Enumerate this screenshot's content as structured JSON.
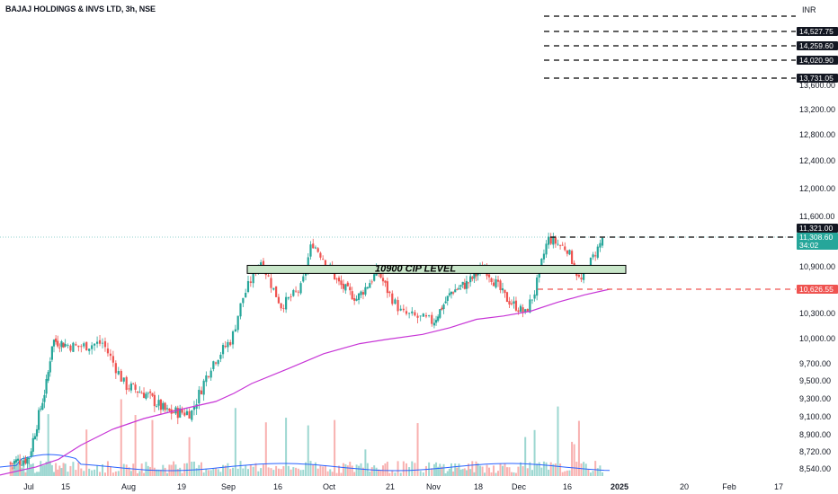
{
  "header": {
    "title": "BAJAJ HOLDINGS & INVS LTD, 3h, NSE"
  },
  "colors": {
    "up": "#26a69a",
    "down": "#ef5350",
    "ma": "#c735d6",
    "volume_ma": "#2962ff",
    "zone_fill": "#c8e6c9",
    "stop": "#ef5350",
    "tag_bg": "#131722"
  },
  "chart_data": {
    "type": "candlestick",
    "currency": "INR",
    "y_ticks": [
      13600,
      13200,
      12800,
      12400,
      12000,
      11600,
      10900,
      10300,
      10000,
      9700,
      9500,
      9300,
      9100,
      8900,
      8720,
      8540
    ],
    "y_tick_labels": [
      "13,600.00",
      "13,200.00",
      "12,800.00",
      "12,400.00",
      "12,000.00",
      "11,600.00",
      "10,900.00",
      "10,300.00",
      "10,000.00",
      "9,700.00",
      "9,500.00",
      "9,300.00",
      "9,100.00",
      "8,900.00",
      "8,720.00",
      "8,540.00"
    ],
    "x_labels": [
      "Jul",
      "15",
      "Aug",
      "19",
      "Sep",
      "16",
      "Oct",
      "21",
      "Nov",
      "18",
      "Dec",
      "16",
      "2025",
      "20",
      "Feb",
      "17"
    ],
    "target_levels": [
      {
        "value": "14,527.75"
      },
      {
        "value": "14,259.60"
      },
      {
        "value": "14,020.90"
      },
      {
        "value": "13,731.05"
      }
    ],
    "top_dashed_unlabeled": true,
    "resistance": {
      "value": "11,321.00"
    },
    "last_price": {
      "value": "11,308.60",
      "countdown": "34:02"
    },
    "stop_level": {
      "value": "10,626.55"
    },
    "zone": {
      "label": "10900 CIP LEVEL",
      "from": 10830,
      "to": 10920
    },
    "moving_average": "purple long-period MA rising from ~8,540 (Jul) to ~10,630 (end Dec)",
    "price_path": [
      {
        "date": "Jul 01",
        "close": 8650
      },
      {
        "date": "Jul 08",
        "close": 9500
      },
      {
        "date": "Jul 10",
        "close": 9980
      },
      {
        "date": "Jul 18",
        "close": 9900
      },
      {
        "date": "Jul 25",
        "close": 9950
      },
      {
        "date": "Jul 31",
        "close": 9450
      },
      {
        "date": "Aug 07",
        "close": 9350
      },
      {
        "date": "Aug 14",
        "close": 9150
      },
      {
        "date": "Aug 22",
        "close": 9150
      },
      {
        "date": "Aug 28",
        "close": 9700
      },
      {
        "date": "Sep 03",
        "close": 10000
      },
      {
        "date": "Sep 06",
        "close": 10500
      },
      {
        "date": "Sep 11",
        "close": 11000
      },
      {
        "date": "Sep 17",
        "close": 10400
      },
      {
        "date": "Sep 23",
        "close": 10650
      },
      {
        "date": "Sep 26",
        "close": 11250
      },
      {
        "date": "Oct 04",
        "close": 10700
      },
      {
        "date": "Oct 10",
        "close": 10500
      },
      {
        "date": "Oct 17",
        "close": 10850
      },
      {
        "date": "Oct 24",
        "close": 10300
      },
      {
        "date": "Nov 01",
        "close": 10200
      },
      {
        "date": "Nov 08",
        "close": 10600
      },
      {
        "date": "Nov 14",
        "close": 10700
      },
      {
        "date": "Nov 20",
        "close": 10900
      },
      {
        "date": "Nov 27",
        "close": 10500
      },
      {
        "date": "Dec 03",
        "close": 10300
      },
      {
        "date": "Dec 06",
        "close": 10600
      },
      {
        "date": "Dec 10",
        "close": 11300
      },
      {
        "date": "Dec 16",
        "close": 11150
      },
      {
        "date": "Dec 20",
        "close": 10700
      },
      {
        "date": "Dec 27",
        "close": 11308.6
      }
    ],
    "grid": false
  }
}
